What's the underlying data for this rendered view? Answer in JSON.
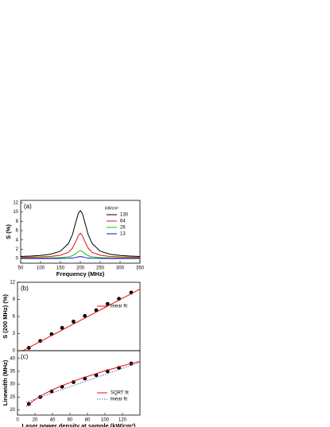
{
  "chart_data": [
    {
      "type": "line",
      "label": "(a)",
      "xlabel": "Frequency (MHz)",
      "ylabel": "S (%)",
      "legend_title": "kW/cm²",
      "xlim": [
        50,
        350
      ],
      "xticks": [
        50,
        100,
        150,
        200,
        250,
        300,
        350
      ],
      "ylim": [
        -1,
        12.5
      ],
      "yticks": [
        0,
        2,
        4,
        6,
        8,
        10,
        12
      ],
      "x": [
        50,
        75,
        100,
        125,
        150,
        170,
        180,
        190,
        195,
        200,
        205,
        210,
        220,
        230,
        250,
        275,
        300,
        325,
        350
      ],
      "series": [
        {
          "name": "130",
          "color": "#000000",
          "values": [
            0.46,
            0.53,
            0.66,
            0.92,
            1.59,
            3.2,
            5.1,
            8.2,
            9.7,
            10.3,
            9.7,
            8.2,
            5.1,
            3.2,
            1.59,
            0.92,
            0.66,
            0.53,
            0.46
          ]
        },
        {
          "name": "64",
          "color": "#e01010",
          "values": [
            0.31,
            0.33,
            0.37,
            0.46,
            0.71,
            1.34,
            2.2,
            3.92,
            4.96,
            5.45,
            4.96,
            3.92,
            2.2,
            1.34,
            0.71,
            0.46,
            0.37,
            0.33,
            0.31
          ]
        },
        {
          "name": "26",
          "color": "#10c010",
          "values": [
            0.11,
            0.12,
            0.13,
            0.15,
            0.21,
            0.37,
            0.6,
            1.13,
            1.51,
            1.7,
            1.51,
            1.13,
            0.6,
            0.37,
            0.21,
            0.15,
            0.13,
            0.12,
            0.11
          ]
        },
        {
          "name": "13",
          "color": "#1010d0",
          "values": [
            0,
            0,
            0,
            0.01,
            0.02,
            0.06,
            0.1,
            0.25,
            0.37,
            0.45,
            0.37,
            0.25,
            0.1,
            0.06,
            0.02,
            0.01,
            0,
            0,
            0
          ]
        }
      ]
    },
    {
      "type": "scatter",
      "label": "(b)",
      "ylabel": "S (200 MHz) (%)",
      "xlim": [
        0,
        140
      ],
      "ylim": [
        0,
        12
      ],
      "yticks": [
        0,
        3,
        6,
        9,
        12
      ],
      "series": [
        {
          "mode": "markers",
          "color": "#000000",
          "x": [
            13,
            26,
            39,
            51,
            64,
            77,
            90,
            103,
            116,
            130
          ],
          "values": [
            0.5,
            1.7,
            2.9,
            4.0,
            5.1,
            6.1,
            7.1,
            8.2,
            9.1,
            10.2
          ]
        },
        {
          "name": "linear fit",
          "mode": "line",
          "color": "#e01010",
          "x": [
            5,
            140
          ],
          "values": [
            -0.1,
            10.8
          ]
        }
      ]
    },
    {
      "type": "scatter",
      "label": "(c)",
      "xlabel": "Laser power density at sample (kW/cm²)",
      "ylabel": "Linewidth (MHz)",
      "xlim": [
        0,
        140
      ],
      "xticks": [
        0,
        20,
        40,
        60,
        80,
        100,
        120
      ],
      "ylim": [
        18,
        43
      ],
      "yticks": [
        20,
        25,
        30,
        35,
        40
      ],
      "series": [
        {
          "mode": "markers",
          "color": "#000000",
          "x": [
            13,
            26,
            39,
            51,
            64,
            77,
            90,
            103,
            116,
            130
          ],
          "values": [
            22.3,
            25,
            27.2,
            29,
            30.8,
            32.2,
            33.5,
            35,
            36.3,
            38
          ]
        },
        {
          "name": "SQRT fit",
          "mode": "line",
          "color": "#e01010",
          "x": [
            10,
            20,
            30,
            40,
            50,
            60,
            70,
            80,
            90,
            100,
            110,
            120,
            130,
            140
          ],
          "values": [
            21.4,
            24.0,
            26.1,
            27.8,
            29.3,
            30.6,
            31.9,
            33.0,
            34.1,
            35.2,
            36.1,
            37.1,
            38.0,
            38.8
          ]
        },
        {
          "name": "linear fit",
          "mode": "dotted",
          "color": "#6666cc",
          "x": [
            10,
            140
          ],
          "values": [
            23,
            38.5
          ]
        }
      ]
    }
  ]
}
